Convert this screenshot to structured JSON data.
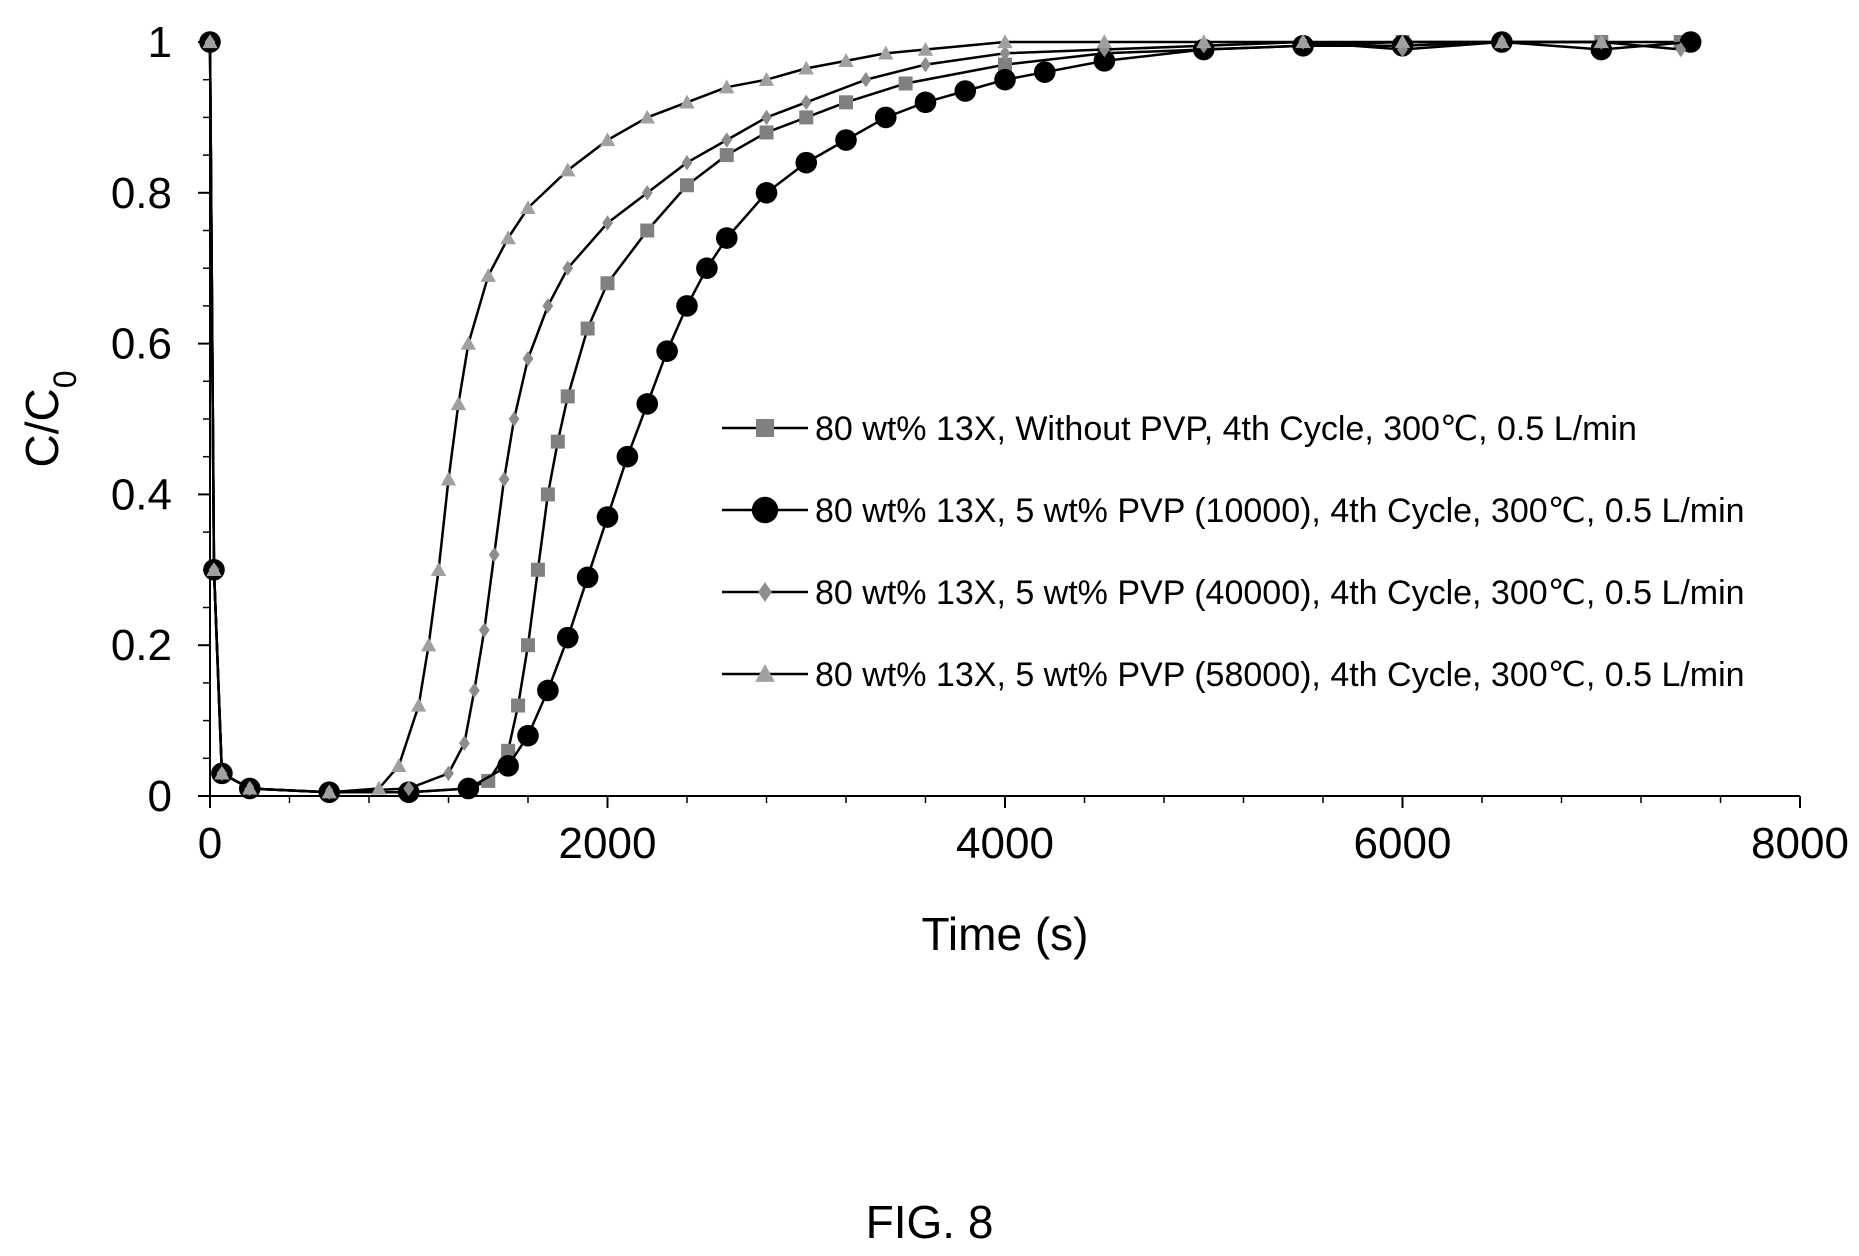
{
  "figure_label": "FIG. 8",
  "chart_data": {
    "type": "line",
    "title": "",
    "xlabel": "Time (s)",
    "ylabel": "C/C",
    "ylabel_subscript": "0",
    "xlim": [
      0,
      8000
    ],
    "ylim": [
      0,
      1
    ],
    "x_ticks": [
      0,
      2000,
      4000,
      6000,
      8000
    ],
    "y_ticks": [
      0,
      0.2,
      0.4,
      0.6,
      0.8,
      1
    ],
    "x_tick_labels": [
      "0",
      "2000",
      "4000",
      "6000",
      "8000"
    ],
    "y_tick_labels": [
      "0",
      "0.2",
      "0.4",
      "0.6",
      "0.8",
      "1"
    ],
    "grid": false,
    "legend_position": "center-right",
    "series": [
      {
        "name": "80 wt% 13X, Without PVP, 4th Cycle, 300℃, 0.5 L/min",
        "marker": "square",
        "color": "#808080",
        "x": [
          0,
          20,
          60,
          200,
          600,
          1000,
          1300,
          1400,
          1500,
          1550,
          1600,
          1650,
          1700,
          1750,
          1800,
          1900,
          2000,
          2200,
          2400,
          2600,
          2800,
          3000,
          3200,
          3500,
          4000,
          4500,
          5000,
          5500,
          6000,
          6500,
          7000,
          7400
        ],
        "y": [
          1.0,
          0.3,
          0.03,
          0.01,
          0.005,
          0.005,
          0.01,
          0.02,
          0.06,
          0.12,
          0.2,
          0.3,
          0.4,
          0.47,
          0.53,
          0.62,
          0.68,
          0.75,
          0.81,
          0.85,
          0.88,
          0.9,
          0.92,
          0.945,
          0.97,
          0.985,
          0.99,
          0.995,
          1.0,
          1.0,
          1.0,
          1.0
        ]
      },
      {
        "name": "80 wt% 13X, 5 wt% PVP (10000), 4th Cycle, 300℃, 0.5 L/min",
        "marker": "circle",
        "color": "#000000",
        "x": [
          0,
          20,
          60,
          200,
          600,
          1000,
          1300,
          1500,
          1600,
          1700,
          1800,
          1900,
          2000,
          2100,
          2200,
          2300,
          2400,
          2500,
          2600,
          2800,
          3000,
          3200,
          3400,
          3600,
          3800,
          4000,
          4200,
          4500,
          5000,
          5500,
          6000,
          6500,
          7000,
          7450
        ],
        "y": [
          1.0,
          0.3,
          0.03,
          0.01,
          0.005,
          0.005,
          0.01,
          0.04,
          0.08,
          0.14,
          0.21,
          0.29,
          0.37,
          0.45,
          0.52,
          0.59,
          0.65,
          0.7,
          0.74,
          0.8,
          0.84,
          0.87,
          0.9,
          0.92,
          0.935,
          0.95,
          0.96,
          0.975,
          0.99,
          0.995,
          0.995,
          1.0,
          0.99,
          1.0
        ]
      },
      {
        "name": "80 wt% 13X, 5 wt% PVP (40000), 4th Cycle, 300℃, 0.5 L/min",
        "marker": "diamond",
        "color": "#8c8c8c",
        "x": [
          0,
          20,
          60,
          200,
          600,
          1000,
          1200,
          1280,
          1330,
          1380,
          1430,
          1480,
          1530,
          1600,
          1700,
          1800,
          2000,
          2200,
          2400,
          2600,
          2800,
          3000,
          3300,
          3600,
          4000,
          4500,
          5000,
          5500,
          6000,
          6500,
          7000,
          7400
        ],
        "y": [
          1.0,
          0.3,
          0.03,
          0.01,
          0.005,
          0.01,
          0.03,
          0.07,
          0.14,
          0.22,
          0.32,
          0.42,
          0.5,
          0.58,
          0.65,
          0.7,
          0.76,
          0.8,
          0.84,
          0.87,
          0.9,
          0.92,
          0.95,
          0.97,
          0.985,
          0.99,
          0.995,
          1.0,
          0.99,
          1.0,
          1.0,
          0.99
        ]
      },
      {
        "name": "80 wt% 13X, 5 wt% PVP (58000), 4th Cycle, 300℃, 0.5 L/min",
        "marker": "triangle",
        "color": "#a0a0a0",
        "x": [
          0,
          20,
          60,
          200,
          600,
          850,
          950,
          1050,
          1100,
          1150,
          1200,
          1250,
          1300,
          1400,
          1500,
          1600,
          1800,
          2000,
          2200,
          2400,
          2600,
          2800,
          3000,
          3200,
          3400,
          3600,
          4000,
          4500,
          5000,
          5500,
          6000,
          6500,
          7000
        ],
        "y": [
          1.0,
          0.3,
          0.03,
          0.01,
          0.005,
          0.01,
          0.04,
          0.12,
          0.2,
          0.3,
          0.42,
          0.52,
          0.6,
          0.69,
          0.74,
          0.78,
          0.83,
          0.87,
          0.9,
          0.92,
          0.94,
          0.95,
          0.965,
          0.975,
          0.985,
          0.99,
          1.0,
          1.0,
          1.0,
          1.0,
          1.0,
          1.0,
          1.0
        ]
      }
    ]
  }
}
